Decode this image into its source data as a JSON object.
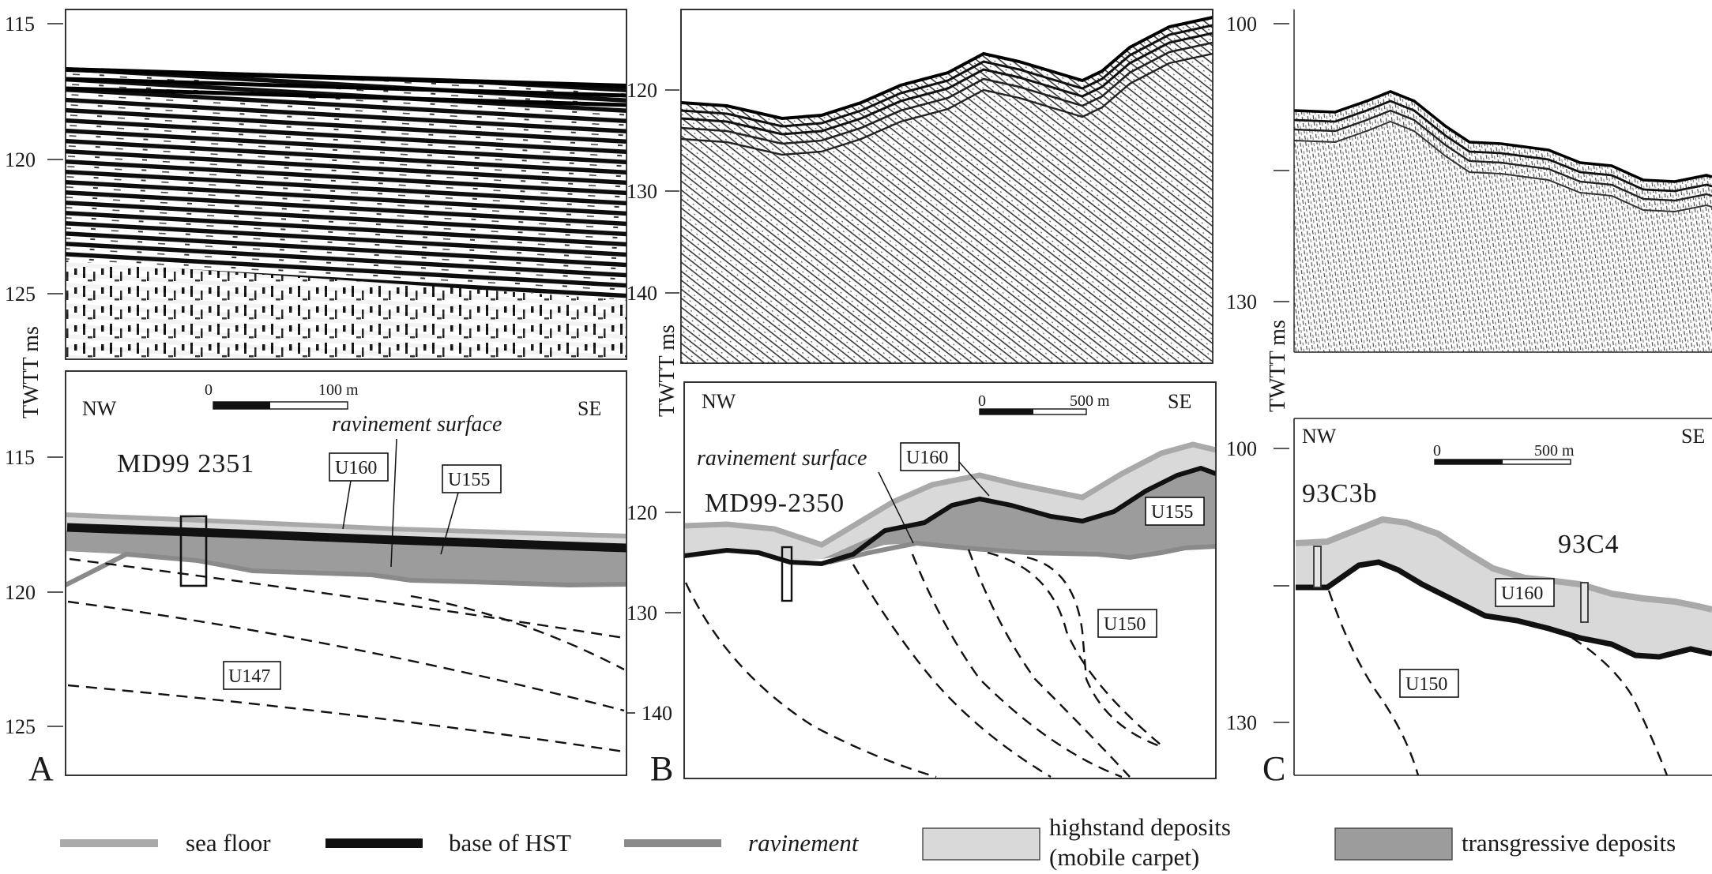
{
  "axis_title": "TWTT ms",
  "colors": {
    "sea_floor": "#a9a9a9",
    "base_hst": "#111111",
    "ravinement": "#8a8a8a",
    "highstand_fill": "#d9d9d9",
    "transgressive_fill": "#9c9c9c"
  },
  "panelA": {
    "letter": "A",
    "seismic_ticks": [
      "115",
      "120",
      "125"
    ],
    "interp_ticks": [
      "115",
      "120",
      "125"
    ],
    "dir_left": "NW",
    "dir_right": "SE",
    "scale_zero": "0",
    "scale_end": "100 m",
    "core": "MD99 2351",
    "ravinement_label": "ravinement surface",
    "units": [
      "U160",
      "U155",
      "U147"
    ]
  },
  "panelB": {
    "letter": "B",
    "seismic_ticks": [
      "120",
      "130",
      "140"
    ],
    "interp_ticks": [
      "120",
      "130",
      "140"
    ],
    "dir_left": "NW",
    "dir_right": "SE",
    "scale_zero": "0",
    "scale_end": "500 m",
    "core": "MD99-2350",
    "ravinement_label": "ravinement surface",
    "units": [
      "U160",
      "U155",
      "U150"
    ]
  },
  "panelC": {
    "letter": "C",
    "seismic_ticks": [
      "100",
      "130"
    ],
    "interp_ticks": [
      "100",
      "130"
    ],
    "dir_left": "NW",
    "dir_right": "SE",
    "scale_zero": "0",
    "scale_end": "500 m",
    "cores": [
      "93C3b",
      "93C4"
    ],
    "units": [
      "U160",
      "U150"
    ]
  },
  "legend": {
    "sea_floor": "sea floor",
    "base_hst": "base of HST",
    "ravinement": "ravinement",
    "highstand_line1": "highstand deposits",
    "highstand_line2": "(mobile carpet)",
    "transgressive": "transgressive deposits"
  }
}
